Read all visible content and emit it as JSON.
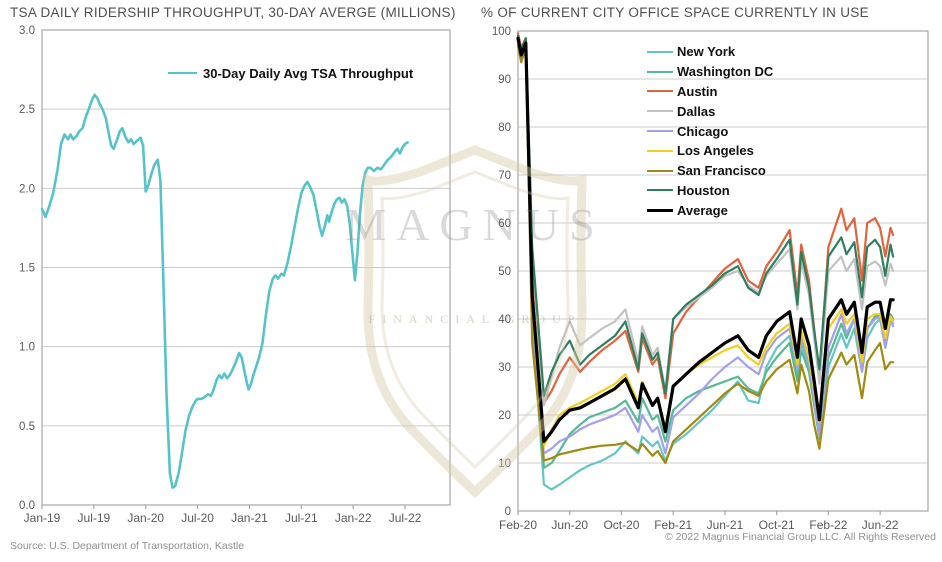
{
  "footer": {
    "source": "Source: U.S. Department of Transportation, Kastle",
    "copyright": "© 2022 Magnus Financial Group LLC. All Rights Reserved"
  },
  "watermark": {
    "line1": "MAGNUS",
    "line2": "FINANCIAL GROUP"
  },
  "chart_data": [
    {
      "type": "line",
      "title": "TSA DAILY RIDERSHIP THROUGHPUT, 30-DAY AVERGE (MILLIONS)",
      "legend_label": "30-Day Daily Avg TSA Throughput",
      "legend_color": "#56c3c9",
      "ylim": [
        0,
        3
      ],
      "y_tick_labels": [
        "3.0",
        "2.5",
        "2.0",
        "1.5",
        "1.0",
        "0.5",
        "0.0"
      ],
      "x_tick_labels": [
        "Jan-19",
        "Jul-19",
        "Jan-20",
        "Jul-20",
        "Jan-21",
        "Jul-21",
        "Jan-22",
        "Jul-22"
      ],
      "x_tick_months": [
        0,
        6,
        12,
        18,
        24,
        30,
        36,
        42
      ],
      "grid": true,
      "series": [
        {
          "name": "30-Day Daily Avg TSA Throughput",
          "color": "#56c3c9",
          "width": 2.6,
          "points": [
            [
              0,
              1.87
            ],
            [
              0.4,
              1.82
            ],
            [
              0.8,
              1.88
            ],
            [
              1.3,
              1.97
            ],
            [
              1.8,
              2.12
            ],
            [
              2.2,
              2.28
            ],
            [
              2.6,
              2.34
            ],
            [
              3,
              2.31
            ],
            [
              3.3,
              2.34
            ],
            [
              3.6,
              2.31
            ],
            [
              4,
              2.33
            ],
            [
              4.3,
              2.36
            ],
            [
              4.7,
              2.38
            ],
            [
              5,
              2.44
            ],
            [
              5.4,
              2.5
            ],
            [
              5.8,
              2.56
            ],
            [
              6.1,
              2.59
            ],
            [
              6.4,
              2.57
            ],
            [
              6.7,
              2.53
            ],
            [
              7,
              2.5
            ],
            [
              7.4,
              2.44
            ],
            [
              7.7,
              2.35
            ],
            [
              8,
              2.27
            ],
            [
              8.3,
              2.25
            ],
            [
              8.7,
              2.31
            ],
            [
              9,
              2.36
            ],
            [
              9.3,
              2.38
            ],
            [
              9.6,
              2.33
            ],
            [
              10,
              2.29
            ],
            [
              10.3,
              2.31
            ],
            [
              10.6,
              2.28
            ],
            [
              11,
              2.3
            ],
            [
              11.4,
              2.32
            ],
            [
              11.7,
              2.27
            ],
            [
              12,
              1.98
            ],
            [
              12.3,
              2.02
            ],
            [
              12.7,
              2.1
            ],
            [
              13,
              2.15
            ],
            [
              13.4,
              2.18
            ],
            [
              13.7,
              2.05
            ],
            [
              14,
              1.5
            ],
            [
              14.4,
              0.7
            ],
            [
              14.8,
              0.2
            ],
            [
              15.1,
              0.11
            ],
            [
              15.4,
              0.12
            ],
            [
              15.8,
              0.2
            ],
            [
              16.2,
              0.33
            ],
            [
              16.6,
              0.47
            ],
            [
              17,
              0.56
            ],
            [
              17.4,
              0.62
            ],
            [
              17.8,
              0.66
            ],
            [
              18,
              0.67
            ],
            [
              18.4,
              0.67
            ],
            [
              18.8,
              0.68
            ],
            [
              19.2,
              0.7
            ],
            [
              19.5,
              0.69
            ],
            [
              19.8,
              0.72
            ],
            [
              20.2,
              0.79
            ],
            [
              20.5,
              0.82
            ],
            [
              20.8,
              0.8
            ],
            [
              21.1,
              0.83
            ],
            [
              21.4,
              0.8
            ],
            [
              21.7,
              0.82
            ],
            [
              22,
              0.85
            ],
            [
              22.4,
              0.9
            ],
            [
              22.8,
              0.96
            ],
            [
              23.1,
              0.93
            ],
            [
              23.4,
              0.85
            ],
            [
              23.7,
              0.77
            ],
            [
              23.9,
              0.73
            ],
            [
              24.2,
              0.77
            ],
            [
              24.5,
              0.83
            ],
            [
              24.8,
              0.88
            ],
            [
              25.1,
              0.93
            ],
            [
              25.5,
              1.02
            ],
            [
              25.9,
              1.2
            ],
            [
              26.3,
              1.35
            ],
            [
              26.7,
              1.43
            ],
            [
              27,
              1.45
            ],
            [
              27.3,
              1.43
            ],
            [
              27.7,
              1.46
            ],
            [
              28,
              1.45
            ],
            [
              28.4,
              1.53
            ],
            [
              28.8,
              1.63
            ],
            [
              29.2,
              1.75
            ],
            [
              29.6,
              1.87
            ],
            [
              30,
              1.97
            ],
            [
              30.4,
              2.02
            ],
            [
              30.7,
              2.04
            ],
            [
              31,
              2.01
            ],
            [
              31.4,
              1.96
            ],
            [
              31.8,
              1.85
            ],
            [
              32.1,
              1.76
            ],
            [
              32.4,
              1.7
            ],
            [
              32.7,
              1.76
            ],
            [
              33,
              1.83
            ],
            [
              33.2,
              1.79
            ],
            [
              33.5,
              1.85
            ],
            [
              33.8,
              1.9
            ],
            [
              34.1,
              1.93
            ],
            [
              34.4,
              1.94
            ],
            [
              34.7,
              1.91
            ],
            [
              35,
              1.93
            ],
            [
              35.3,
              1.89
            ],
            [
              35.6,
              1.78
            ],
            [
              35.9,
              1.6
            ],
            [
              36.2,
              1.42
            ],
            [
              36.5,
              1.6
            ],
            [
              36.8,
              1.85
            ],
            [
              37.1,
              2.02
            ],
            [
              37.4,
              2.1
            ],
            [
              37.7,
              2.13
            ],
            [
              38,
              2.13
            ],
            [
              38.4,
              2.11
            ],
            [
              38.8,
              2.13
            ],
            [
              39.2,
              2.12
            ],
            [
              39.6,
              2.15
            ],
            [
              40,
              2.18
            ],
            [
              40.4,
              2.2
            ],
            [
              40.8,
              2.23
            ],
            [
              41.1,
              2.25
            ],
            [
              41.4,
              2.22
            ],
            [
              41.7,
              2.26
            ],
            [
              42,
              2.28
            ],
            [
              42.3,
              2.29
            ]
          ]
        }
      ]
    },
    {
      "type": "line",
      "title": "% OF CURRENT CITY OFFICE SPACE CURRENTLY IN USE",
      "ylim": [
        0,
        100
      ],
      "y_tick_labels": [
        "100",
        "90",
        "80",
        "70",
        "60",
        "50",
        "40",
        "30",
        "20",
        "10",
        "0"
      ],
      "x_tick_labels": [
        "Feb-20",
        "Jun-20",
        "Oct-20",
        "Feb-21",
        "Jun-21",
        "Oct-21",
        "Feb-22",
        "Jun-22"
      ],
      "x_tick_months": [
        0,
        4,
        8,
        12,
        16,
        20,
        24,
        28
      ],
      "grid": true,
      "x": [
        0,
        0.25,
        0.6,
        1.1,
        2,
        2.6,
        3.2,
        4,
        4.8,
        5.5,
        6.5,
        7.5,
        8.3,
        9.3,
        9.6,
        10.4,
        10.8,
        11.4,
        12,
        13,
        14,
        15,
        16,
        17,
        17.8,
        18.6,
        19.2,
        20,
        21,
        21.6,
        21.9,
        22.5,
        22.9,
        23.3,
        24,
        25,
        25.4,
        26,
        26.6,
        27,
        27.6,
        28,
        28.4,
        28.8,
        29
      ],
      "series": [
        {
          "name": "New York",
          "color": "#63c6c4",
          "width": 2.2,
          "values": [
            98.5,
            94,
            98,
            40,
            5.5,
            4.5,
            5.5,
            7,
            8.5,
            9.5,
            10.5,
            12,
            14.5,
            12,
            15.5,
            13.5,
            14.5,
            10.5,
            14,
            16,
            18.5,
            21,
            24,
            27,
            23,
            22.5,
            30,
            34,
            36.5,
            28,
            35,
            30,
            22,
            15,
            30,
            37,
            34,
            38,
            29,
            36,
            39,
            40,
            34,
            39.5,
            39
          ]
        },
        {
          "name": "Washington DC",
          "color": "#57b894",
          "width": 2.2,
          "values": [
            97.5,
            94.5,
            97.5,
            42,
            9,
            10,
            12.5,
            16,
            18,
            19.5,
            20.5,
            21.5,
            23,
            18.5,
            23.5,
            19,
            20,
            14.5,
            21,
            23.5,
            25,
            26,
            27,
            28,
            25.5,
            24.5,
            29,
            32,
            35,
            27,
            33.5,
            29,
            22,
            17.5,
            32,
            39,
            36,
            40,
            30,
            38,
            40.5,
            41,
            35,
            41,
            40
          ]
        },
        {
          "name": "Austin",
          "color": "#e2633c",
          "width": 2.2,
          "values": [
            99.5,
            96.5,
            98.5,
            52,
            22.5,
            25,
            28.5,
            32,
            29,
            31,
            33.5,
            35.5,
            37.5,
            29,
            36,
            30.5,
            32,
            23.5,
            37,
            41.5,
            44.5,
            47.5,
            50.5,
            52.5,
            48,
            46.5,
            51,
            54,
            58.5,
            45,
            55.5,
            48,
            38,
            28.5,
            55,
            63,
            58.5,
            61,
            48,
            60,
            61,
            59,
            53,
            59,
            57.5
          ]
        },
        {
          "name": "Dallas",
          "color": "#c2c2c2",
          "width": 2.2,
          "values": [
            99,
            96,
            98,
            54,
            22,
            28,
            34,
            39.5,
            34.5,
            36,
            38,
            39.5,
            42,
            31,
            38.5,
            32.5,
            34,
            25,
            40,
            42.5,
            44.5,
            46.5,
            49,
            50,
            47,
            45.5,
            49,
            51.5,
            54.5,
            42,
            52,
            45,
            36,
            26.5,
            50,
            53,
            50,
            52.5,
            42,
            51,
            52,
            51,
            47,
            51.5,
            50
          ]
        },
        {
          "name": "Chicago",
          "color": "#a3a1ea",
          "width": 2.2,
          "values": [
            98,
            94.5,
            97.5,
            38,
            12,
            13,
            14.5,
            15.5,
            17,
            18,
            19,
            20,
            21.5,
            16.5,
            20,
            16.5,
            17.5,
            12,
            19.5,
            22,
            24.5,
            27.5,
            30,
            32,
            30,
            28.5,
            33,
            36,
            38,
            29.5,
            36.5,
            31,
            23,
            16,
            34,
            41,
            37,
            40,
            29,
            38,
            40,
            40.5,
            34,
            40,
            38.5
          ]
        },
        {
          "name": "Los Angeles",
          "color": "#f2cf1d",
          "width": 2.2,
          "values": [
            98,
            95,
            97.5,
            45,
            13.5,
            17,
            20,
            21.5,
            22.5,
            23.5,
            25,
            26.5,
            28.5,
            22.5,
            27,
            22,
            23,
            17.5,
            26,
            28.5,
            30.5,
            32,
            33.5,
            34.5,
            32,
            30.5,
            34,
            37,
            39,
            30.5,
            37.5,
            32,
            25,
            18.5,
            38,
            42,
            39,
            41,
            31,
            40,
            41,
            41,
            36,
            40.5,
            39.5
          ]
        },
        {
          "name": "San Francisco",
          "color": "#a18a10",
          "width": 2.2,
          "values": [
            97,
            93.5,
            96.5,
            35,
            10.5,
            11,
            11.8,
            12.3,
            12.8,
            13.2,
            13.6,
            13.8,
            14.2,
            12.5,
            14,
            11.5,
            12.5,
            10,
            14.5,
            17,
            19.5,
            22,
            24.5,
            26.5,
            25,
            24,
            27,
            29.5,
            31.5,
            24.5,
            30.5,
            25,
            18,
            13,
            27.5,
            33,
            30.5,
            32.5,
            23.5,
            31,
            33.5,
            35,
            29.5,
            31,
            31
          ]
        },
        {
          "name": "Houston",
          "color": "#2e7f5e",
          "width": 2.2,
          "values": [
            99,
            96,
            98.5,
            55,
            24,
            29,
            32.5,
            35.5,
            30.5,
            32.5,
            34.5,
            36.5,
            39.5,
            29.5,
            37,
            31.5,
            33,
            24.5,
            40,
            43,
            45,
            47,
            49.5,
            51,
            46.5,
            45,
            49.5,
            52.5,
            56.5,
            43,
            54,
            46.5,
            37.5,
            29.5,
            53,
            57,
            53.5,
            56,
            44.5,
            55,
            56.5,
            55,
            49,
            55.5,
            53
          ]
        },
        {
          "name": "Average",
          "color": "#000000",
          "width": 3.2,
          "values": [
            98.5,
            95,
            97.5,
            45,
            14.5,
            16.5,
            19,
            21,
            21.5,
            22.5,
            24,
            25.5,
            27.5,
            21.5,
            26.5,
            22,
            23.5,
            16.5,
            26,
            28.5,
            31,
            33,
            35,
            36.5,
            33.5,
            32,
            36.5,
            39.5,
            41.5,
            32,
            40,
            34.5,
            27,
            19,
            40,
            44,
            41,
            43.5,
            33,
            42.5,
            43.5,
            43.5,
            38,
            44,
            44
          ]
        }
      ]
    }
  ]
}
